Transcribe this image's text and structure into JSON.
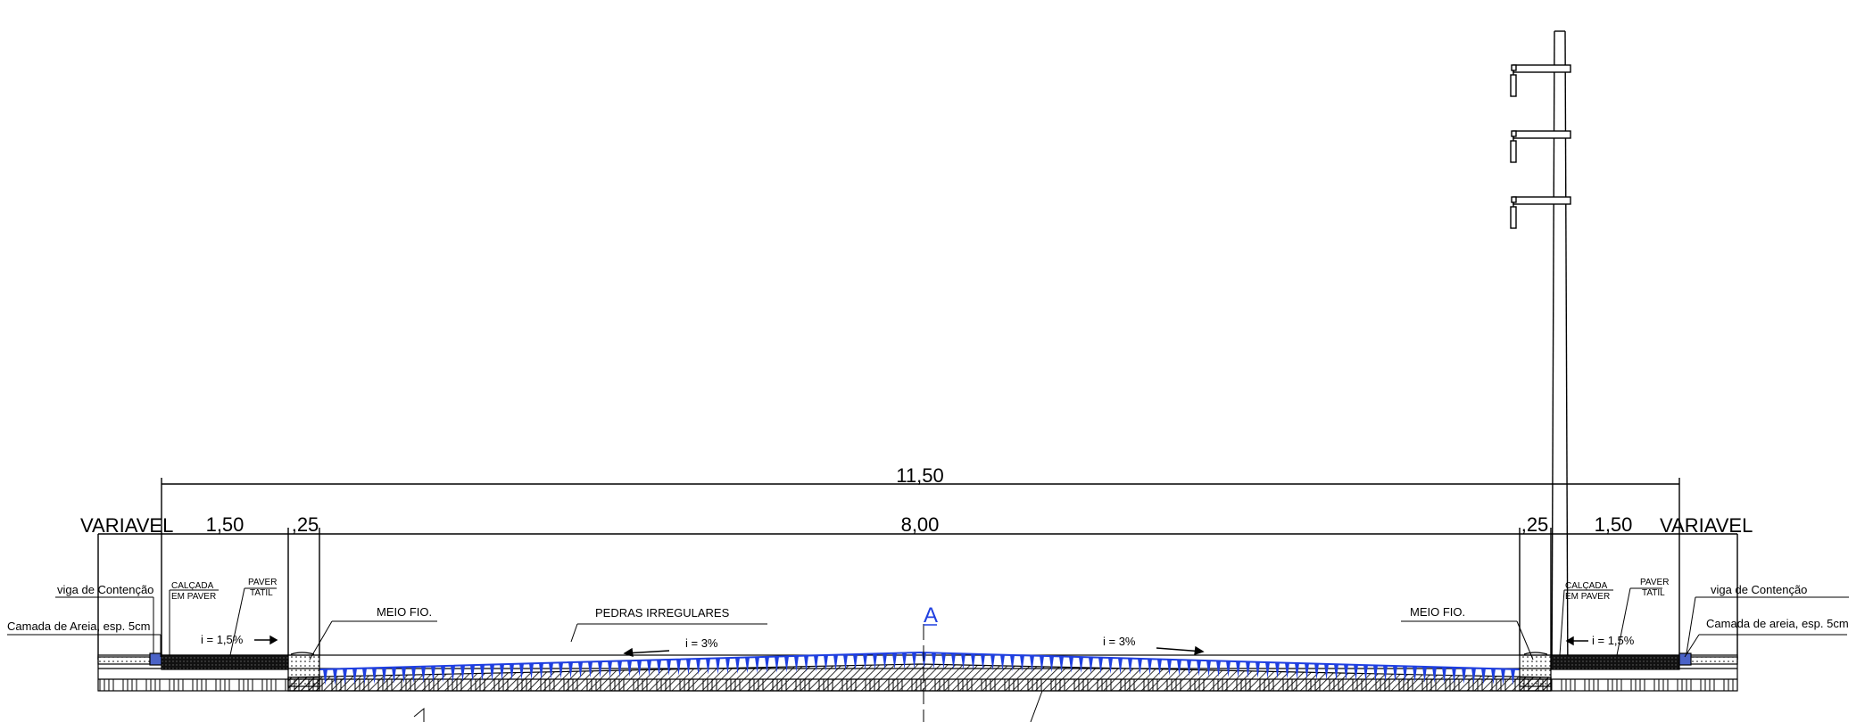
{
  "dimensions": {
    "total_width": "11,50",
    "variable_left": "VARIAVEL",
    "variable_right": "VARIAVEL",
    "sidewalk_left": "1,50",
    "sidewalk_right": "1,50",
    "curb_left": ",25",
    "curb_right": ",25",
    "roadway": "8,00"
  },
  "labels": {
    "viga_left": "viga de Contenção",
    "viga_right": "viga de Contenção",
    "areia_left": "Camada de Areia, esp. 5cm",
    "areia_right": "Camada de areia, esp. 5cm",
    "calcada_line1": "CALÇADA",
    "calcada_line2": "EM PAVER",
    "paver_line1": "PAVER",
    "paver_line2": "TATIL",
    "meio_fio_left": "MEIO FIO.",
    "meio_fio_right": "MEIO FIO.",
    "pedras": "PEDRAS IRREGULARES",
    "axis_marker": "A"
  },
  "slopes": {
    "sidewalk_left": "i = 1,5%",
    "sidewalk_right": "i = 1,5%",
    "road_left": "i = 3%",
    "road_right": "i = 3%"
  },
  "colors": {
    "line": "#000000",
    "paving_blue": "#1f3fe0"
  }
}
